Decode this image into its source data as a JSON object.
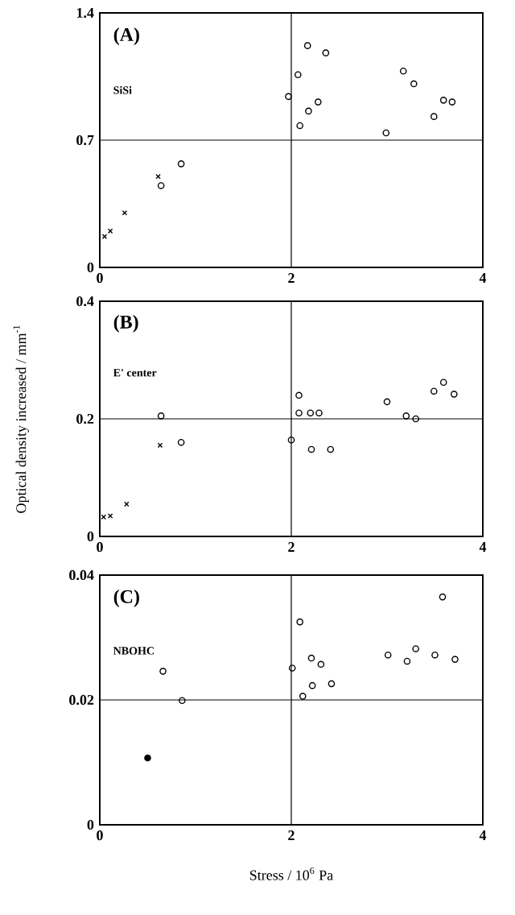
{
  "chart_data": [
    {
      "type": "scatter",
      "xlim": [
        0,
        4
      ],
      "ylim": [
        0,
        1.4
      ],
      "xticks": [
        0,
        2,
        4
      ],
      "yticks": [
        0,
        0.7,
        1.4
      ],
      "grid": true,
      "annotations": [
        "(A)",
        "SiSi"
      ],
      "series": [
        {
          "color": "#000000",
          "marker": "circle",
          "x": [
            2.17,
            2.36,
            2.07,
            1.97,
            2.28,
            2.18,
            2.09,
            3.17,
            3.28,
            2.99,
            3.49,
            3.59,
            3.68,
            0.85,
            0.64
          ],
          "values": [
            1.22,
            1.18,
            1.06,
            0.94,
            0.91,
            0.86,
            0.78,
            1.08,
            1.01,
            0.74,
            0.83,
            0.92,
            0.91,
            0.57,
            0.45
          ]
        },
        {
          "color": "#000000",
          "marker": "cross",
          "x": [
            0.61,
            0.26,
            0.11,
            0.05
          ],
          "values": [
            0.5,
            0.3,
            0.2,
            0.17
          ]
        }
      ]
    },
    {
      "type": "scatter",
      "xlim": [
        0,
        4
      ],
      "ylim": [
        0,
        0.4
      ],
      "xticks": [
        0,
        2,
        4
      ],
      "yticks": [
        0,
        0.2,
        0.4
      ],
      "grid": true,
      "ylabel": "Optical density increased / mm$^{-1}$",
      "annotations": [
        "(B)",
        "E' center"
      ],
      "series": [
        {
          "color": "#000000",
          "marker": "circle",
          "x": [
            0.64,
            0.85,
            2.08,
            2.08,
            2.2,
            2.29,
            2.0,
            2.21,
            2.41,
            3.0,
            3.2,
            3.3,
            3.49,
            3.59,
            3.7
          ],
          "values": [
            0.205,
            0.16,
            0.24,
            0.21,
            0.21,
            0.21,
            0.164,
            0.148,
            0.148,
            0.229,
            0.205,
            0.2,
            0.247,
            0.262,
            0.242
          ]
        },
        {
          "color": "#000000",
          "marker": "cross",
          "x": [
            0.63,
            0.28,
            0.11,
            0.04
          ],
          "values": [
            0.155,
            0.055,
            0.035,
            0.033
          ]
        }
      ]
    },
    {
      "type": "scatter",
      "xlim": [
        0,
        4
      ],
      "ylim": [
        0,
        0.04
      ],
      "xticks": [
        0,
        2,
        4
      ],
      "yticks": [
        0,
        0.02,
        0.04
      ],
      "grid": true,
      "xlabel": "Stress / 10$^{6}$ Pa",
      "annotations": [
        "(C)",
        "NBOHC"
      ],
      "series": [
        {
          "color": "#000000",
          "marker": "circle",
          "x": [
            0.66,
            0.86,
            2.09,
            2.01,
            2.21,
            2.31,
            2.22,
            2.42,
            2.12,
            3.01,
            3.21,
            3.3,
            3.5,
            3.58,
            3.71
          ],
          "values": [
            0.0246,
            0.0199,
            0.0325,
            0.0251,
            0.0267,
            0.0257,
            0.0223,
            0.0226,
            0.0206,
            0.0272,
            0.0262,
            0.0282,
            0.0272,
            0.0365,
            0.0265
          ]
        },
        {
          "color": "#000000",
          "marker": "filled circle",
          "x": [
            0.5
          ],
          "values": [
            0.0107
          ]
        }
      ]
    }
  ]
}
